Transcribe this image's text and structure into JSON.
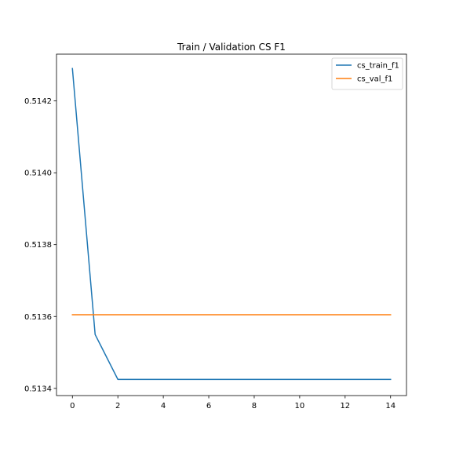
{
  "chart_data": {
    "type": "line",
    "title": "Train / Validation CS F1",
    "xlabel": "",
    "ylabel": "",
    "x": [
      0,
      1,
      2,
      3,
      4,
      5,
      6,
      7,
      8,
      9,
      10,
      11,
      12,
      13,
      14
    ],
    "xlim": [
      -0.7,
      14.7
    ],
    "ylim": [
      0.51338,
      0.51433
    ],
    "xticks": [
      0,
      2,
      4,
      6,
      8,
      10,
      12,
      14
    ],
    "xtick_labels": [
      "0",
      "2",
      "4",
      "6",
      "8",
      "10",
      "12",
      "14"
    ],
    "yticks": [
      0.5134,
      0.5136,
      0.5138,
      0.514,
      0.5142
    ],
    "ytick_labels": [
      "0.5134",
      "0.5136",
      "0.5138",
      "0.5140",
      "0.5142"
    ],
    "grid": false,
    "legend_position": "top-right",
    "series": [
      {
        "name": "cs_train_f1",
        "color": "#1f77b4",
        "values": [
          0.51429,
          0.51355,
          0.513425,
          0.513425,
          0.513425,
          0.513425,
          0.513425,
          0.513425,
          0.513425,
          0.513425,
          0.513425,
          0.513425,
          0.513425,
          0.513425,
          0.513425
        ]
      },
      {
        "name": "cs_val_f1",
        "color": "#ff7f0e",
        "values": [
          0.513605,
          0.513605,
          0.513605,
          0.513605,
          0.513605,
          0.513605,
          0.513605,
          0.513605,
          0.513605,
          0.513605,
          0.513605,
          0.513605,
          0.513605,
          0.513605,
          0.513605
        ]
      }
    ]
  }
}
